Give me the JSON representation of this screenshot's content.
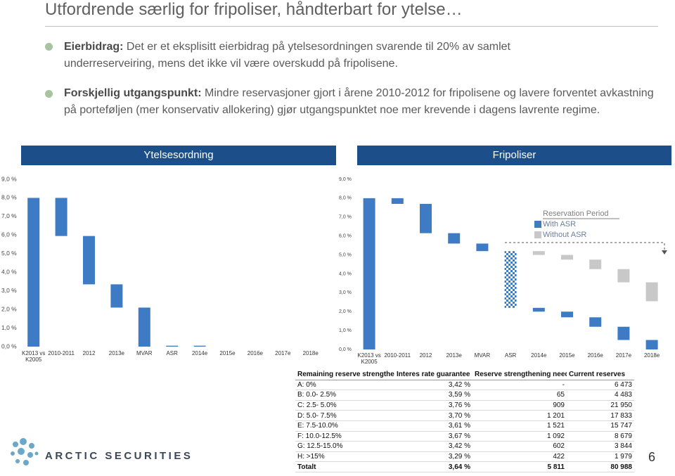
{
  "title": "Utfordrende særlig for fripoliser, håndterbart for ytelse…",
  "bullets": [
    {
      "lead": "Eierbidrag:",
      "text": "Det er et eksplisitt eierbidrag på ytelsesordningen svarende til 20% av samlet underreserveiring, mens det ikke vil være overskudd på fripolisene."
    },
    {
      "lead": "Forskjellig utgangspunkt:",
      "text": "Mindre reservasjoner gjort i årene 2010-2012 for fripolisene og lavere forventet avkastning på porteføljen (mer konservativ allokering) gjør utgangspunktet noe mer krevende i dagens lavrente regime."
    }
  ],
  "chart_data": [
    {
      "type": "waterfall",
      "title": "Ytelsesordning",
      "categories": [
        "K2013 vs K2005",
        "2010-2011",
        "2012",
        "2013e",
        "MVAR",
        "ASR",
        "2014e",
        "2015e",
        "2016e",
        "2017e",
        "2018e"
      ],
      "values": [
        8.0,
        -2.05,
        -2.6,
        -1.25,
        -2.1,
        0.05,
        -0.05,
        0,
        0,
        0,
        0
      ],
      "color": "#3d7cc4",
      "ylim": [
        0,
        9
      ],
      "yticks": [
        {
          "value": 0,
          "label": "0,0 %"
        },
        {
          "value": 1,
          "label": "1,0 %"
        },
        {
          "value": 2,
          "label": "2,0 %"
        },
        {
          "value": 3,
          "label": "3,0 %"
        },
        {
          "value": 4,
          "label": "4,0 %"
        },
        {
          "value": 5,
          "label": "5,0 %"
        },
        {
          "value": 6,
          "label": "6,0 %"
        },
        {
          "value": 7,
          "label": "7,0 %"
        },
        {
          "value": 8,
          "label": "8,0 %"
        },
        {
          "value": 9,
          "label": "9,0 %"
        }
      ]
    },
    {
      "type": "waterfall",
      "title": "Fripoliser",
      "categories": [
        "K2013 vs K2005",
        "2010-2011",
        "2012",
        "2013e",
        "MVAR",
        "ASR",
        "2014e",
        "2015e",
        "2016e",
        "2017e",
        "2018e"
      ],
      "values": [
        8.0,
        -0.3,
        -1.55,
        -0.55,
        -0.4,
        null,
        null,
        null,
        null,
        null,
        null
      ],
      "color": "#3d7cc4",
      "legend_title": "Reservation Period",
      "series": [
        {
          "name": "With ASR",
          "color": "#3d7cc4",
          "values": [
            null,
            null,
            null,
            null,
            null,
            -3.0,
            -0.2,
            -0.3,
            -0.5,
            -0.7,
            -0.5
          ]
        },
        {
          "name": "Without ASR",
          "color": "#c8c8c8",
          "values": [
            null,
            null,
            null,
            null,
            null,
            null,
            -0.2,
            -0.25,
            -0.5,
            -0.7,
            -1.0
          ]
        }
      ],
      "ylim": [
        0,
        9
      ],
      "yticks": [
        {
          "value": 0,
          "label": "0,0 %"
        },
        {
          "value": 1,
          "label": "1,0 %"
        },
        {
          "value": 2,
          "label": "2,0 %"
        },
        {
          "value": 3,
          "label": "3,0 %"
        },
        {
          "value": 4,
          "label": "4,0 %"
        },
        {
          "value": 5,
          "label": "5,0 %"
        },
        {
          "value": 6,
          "label": "6,0 %"
        },
        {
          "value": 7,
          "label": "7,0 %"
        },
        {
          "value": 8,
          "label": "8,0 %"
        },
        {
          "value": 9,
          "label": "9,0 %"
        }
      ]
    }
  ],
  "table": {
    "header": [
      "Remaining reserve strengthen",
      "Interes rate guarantee",
      "Reserve strengthening need",
      "Current reserves"
    ],
    "rows": [
      [
        "A: 0%",
        "3,42 %",
        "-",
        "6 473"
      ],
      [
        "B: 0.0- 2.5%",
        "3,59 %",
        "65",
        "4 483"
      ],
      [
        "C: 2.5- 5.0%",
        "3,76 %",
        "909",
        "21 950"
      ],
      [
        "D: 5.0- 7.5%",
        "3,70 %",
        "1 201",
        "17 833"
      ],
      [
        "E: 7.5-10.0%",
        "3,61 %",
        "1 521",
        "15 747"
      ],
      [
        "F: 10.0-12.5%",
        "3,67 %",
        "1 092",
        "8 679"
      ],
      [
        "G: 12.5-15.0%",
        "3,42 %",
        "602",
        "3 844"
      ],
      [
        "H: >15%",
        "3,29 %",
        "422",
        "1 979"
      ],
      [
        "Totalt",
        "3,64 %",
        "5 811",
        "80 988"
      ]
    ]
  },
  "logo": "ARCTIC SECURITIES",
  "page_number": "6"
}
